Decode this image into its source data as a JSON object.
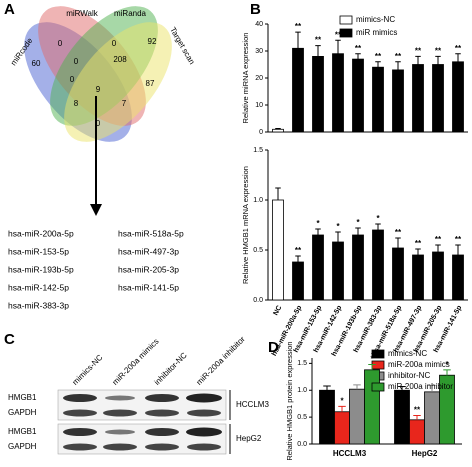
{
  "panel_labels": [
    "A",
    "B",
    "C",
    "D"
  ],
  "venn": {
    "sets": [
      "miRcode",
      "miRWalk",
      "miRanda",
      "Target scan"
    ],
    "regions": [
      60,
      0,
      0,
      92,
      0,
      208,
      0,
      87,
      9,
      8,
      7,
      0
    ],
    "list": [
      "hsa-miR-200a-5p",
      "hsa-miR-153-5p",
      "hsa-miR-193b-5p",
      "hsa-miR-142-5p",
      "hsa-miR-383-3p",
      "hsa-miR-518a-5p",
      "hsa-miR-497-3p",
      "hsa-miR-205-3p",
      "hsa-miR-141-5p"
    ]
  },
  "blot": {
    "columns": [
      "mimics-NC",
      "miR-200a mimics",
      "inhibitor-NC",
      "miR-200a inhibitor"
    ],
    "rows": [
      "HMGB1",
      "GAPDH",
      "HMGB1",
      "GAPDH"
    ],
    "groups": [
      "HCCLM3",
      "HepG2"
    ]
  },
  "chart_data": [
    {
      "type": "bar",
      "y_label": "Relative miRNA expression",
      "grouped": false,
      "ylim": [
        0,
        40
      ],
      "yticks": [
        0,
        10,
        20,
        30,
        40
      ],
      "series": [
        {
          "name": "mimics-NC",
          "color": "#ffffff",
          "values": [
            1,
            null,
            null,
            null,
            null,
            null,
            null,
            null,
            null,
            null
          ],
          "errors": [
            0.3,
            null,
            null,
            null,
            null,
            null,
            null,
            null,
            null,
            null
          ]
        },
        {
          "name": "miR mimics",
          "color": "#000000",
          "values": [
            null,
            31,
            28,
            29,
            27,
            24,
            23,
            25,
            25,
            26
          ],
          "errors": [
            null,
            6,
            4,
            5,
            2,
            2,
            3,
            3,
            3,
            3
          ],
          "annotations": [
            null,
            "**",
            "**",
            "**",
            "**",
            "**",
            "**",
            "**",
            "**",
            "**"
          ]
        }
      ]
    },
    {
      "type": "bar",
      "y_label": "Relative HMGB1 mRNA expression",
      "grouped": false,
      "categories": [
        "NC",
        "hsa-miR-200a-5p",
        "hsa-miR-153-5p",
        "hsa-miR-142-5p",
        "hsa-miR-193b-5p",
        "hsa-miR-383-3p",
        "hsa-miR-518a-5p",
        "hsa-miR-497-3p",
        "hsa-miR-205-3p",
        "hsa-miR-141-5p"
      ],
      "ylim": [
        0,
        1.5
      ],
      "yticks": [
        {
          "value": 0,
          "label": "0.0"
        },
        {
          "value": 0.5,
          "label": "0.5"
        },
        {
          "value": 1,
          "label": "1.0"
        },
        {
          "value": 1.5,
          "label": "1.5"
        }
      ],
      "series": [
        {
          "color": "#ffffff",
          "values": [
            1.0,
            null,
            null,
            null,
            null,
            null,
            null,
            null,
            null,
            null
          ],
          "errors": [
            0.12,
            null,
            null,
            null,
            null,
            null,
            null,
            null,
            null,
            null
          ]
        },
        {
          "color": "#000000",
          "values": [
            null,
            0.38,
            0.65,
            0.58,
            0.65,
            0.7,
            0.52,
            0.45,
            0.48,
            0.45
          ],
          "errors": [
            null,
            0.06,
            0.06,
            0.1,
            0.07,
            0.06,
            0.1,
            0.06,
            0.07,
            0.1
          ],
          "annotations": [
            null,
            "**",
            "*",
            "*",
            "*",
            "*",
            "**",
            "**",
            "**",
            "**"
          ]
        }
      ]
    },
    {
      "type": "bar",
      "y_label": "Relative HMGB1 protein expression",
      "grouped": true,
      "categories": [
        "HCCLM3",
        "HepG2"
      ],
      "ylim": [
        0,
        1.6
      ],
      "yticks": [
        {
          "value": 0,
          "label": "0.0"
        },
        {
          "value": 0.5,
          "label": "0.5"
        },
        {
          "value": 1,
          "label": "1.0"
        },
        {
          "value": 1.5,
          "label": "1.5"
        }
      ],
      "series": [
        {
          "name": "mimics-NC",
          "color": "#000000",
          "values": [
            1.0,
            1.0
          ],
          "errors": [
            0.08,
            0.07
          ]
        },
        {
          "name": "miR-200a mimics",
          "color": "#e8261c",
          "values": [
            0.6,
            0.45
          ],
          "errors": [
            0.1,
            0.08
          ],
          "annotations": [
            "*",
            "**"
          ]
        },
        {
          "name": "inhibitor-NC",
          "color": "#8c8c8c",
          "values": [
            1.02,
            0.97
          ],
          "errors": [
            0.08,
            0.12
          ]
        },
        {
          "name": "miR-200a inhibitor",
          "color": "#2e9a2e",
          "values": [
            1.38,
            1.28
          ],
          "errors": [
            0.1,
            0.1
          ],
          "annotations": [
            "*",
            "*"
          ]
        }
      ]
    }
  ]
}
